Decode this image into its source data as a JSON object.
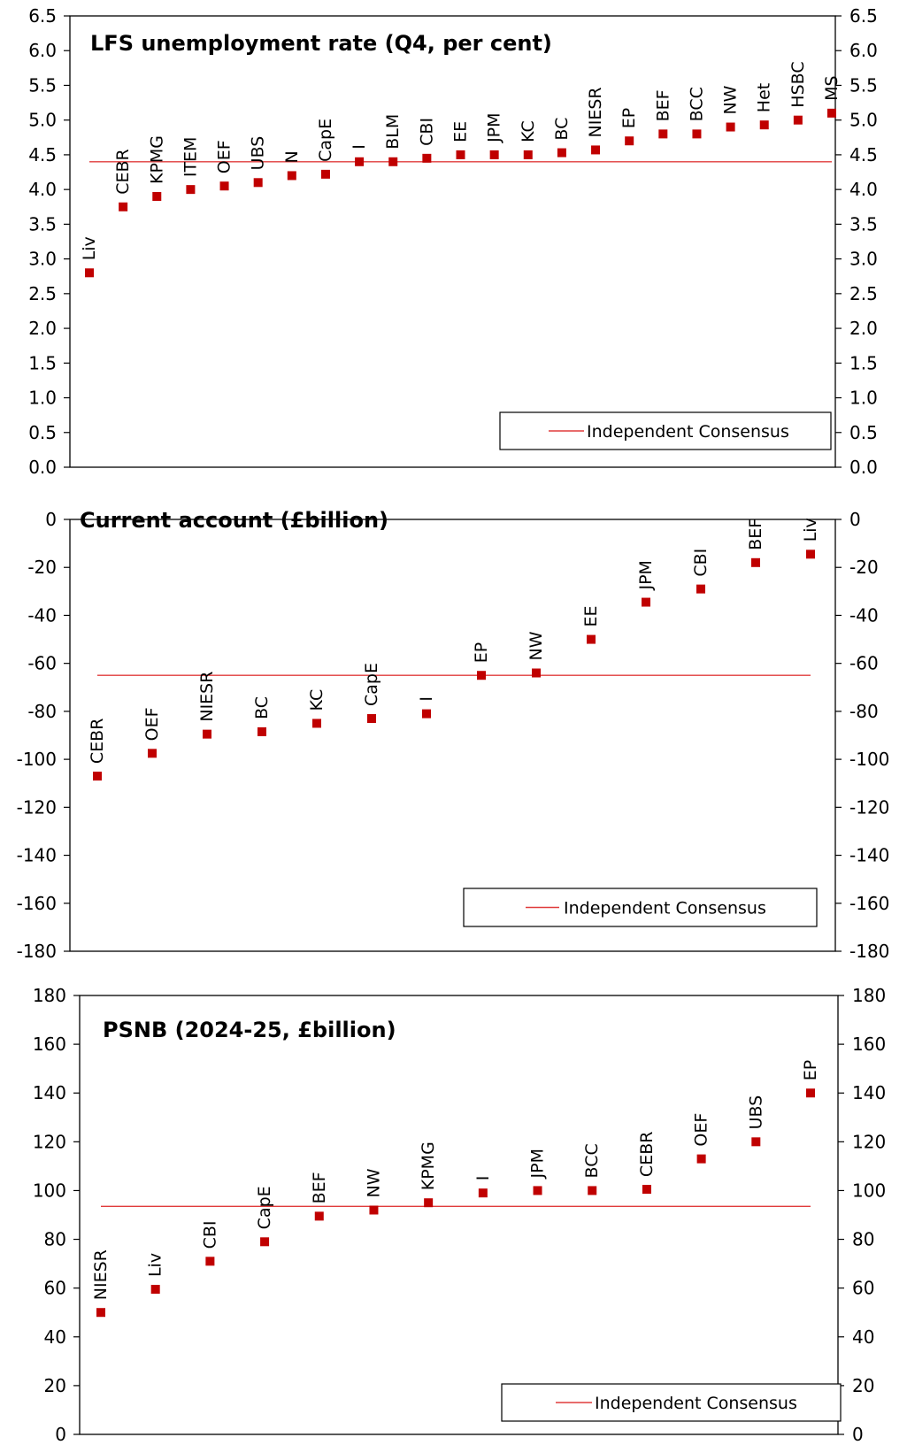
{
  "colors": {
    "marker": "#c00000",
    "consensus": "#e03c3c",
    "axis": "#000000"
  },
  "charts": [
    {
      "type": "scatter",
      "title": "LFS unemployment rate (Q4, per cent)",
      "legend": "Independent Consensus",
      "legend_placement": "bottom-right",
      "ylim": [
        0,
        6.5
      ],
      "yticks": [
        "0.0",
        "0.5",
        "1.0",
        "1.5",
        "2.0",
        "2.5",
        "3.0",
        "3.5",
        "4.0",
        "4.5",
        "5.0",
        "5.5",
        "6.0",
        "6.5"
      ],
      "consensus": 4.4,
      "points": [
        {
          "label": "Liv",
          "value": 2.8
        },
        {
          "label": "CEBR",
          "value": 3.75
        },
        {
          "label": "KPMG",
          "value": 3.9
        },
        {
          "label": "ITEM",
          "value": 4.0
        },
        {
          "label": "OEF",
          "value": 4.05
        },
        {
          "label": "UBS",
          "value": 4.1
        },
        {
          "label": "N",
          "value": 4.2
        },
        {
          "label": "CapE",
          "value": 4.22
        },
        {
          "label": "I",
          "value": 4.4
        },
        {
          "label": "BLM",
          "value": 4.4
        },
        {
          "label": "CBI",
          "value": 4.45
        },
        {
          "label": "EE",
          "value": 4.5
        },
        {
          "label": "JPM",
          "value": 4.5
        },
        {
          "label": "KC",
          "value": 4.5
        },
        {
          "label": "BC",
          "value": 4.53
        },
        {
          "label": "NIESR",
          "value": 4.57
        },
        {
          "label": "EP",
          "value": 4.7
        },
        {
          "label": "BEF",
          "value": 4.8
        },
        {
          "label": "BCC",
          "value": 4.8
        },
        {
          "label": "NW",
          "value": 4.9
        },
        {
          "label": "Het",
          "value": 4.93
        },
        {
          "label": "HSBC",
          "value": 5.0
        },
        {
          "label": "MS",
          "value": 5.1
        }
      ]
    },
    {
      "type": "scatter",
      "title": "Current account (£billion)",
      "legend": "Independent Consensus",
      "legend_placement": "bottom-right",
      "ylim": [
        -180,
        0
      ],
      "yticks": [
        "-180",
        "-160",
        "-140",
        "-120",
        "-100",
        "-80",
        "-60",
        "-40",
        "-20",
        "0"
      ],
      "consensus": -65,
      "points": [
        {
          "label": "CEBR",
          "value": -107
        },
        {
          "label": "OEF",
          "value": -97.5
        },
        {
          "label": "NIESR",
          "value": -89.5
        },
        {
          "label": "BC",
          "value": -88.5
        },
        {
          "label": "KC",
          "value": -85
        },
        {
          "label": "CapE",
          "value": -83
        },
        {
          "label": "I",
          "value": -81
        },
        {
          "label": "EP",
          "value": -65
        },
        {
          "label": "NW",
          "value": -64
        },
        {
          "label": "EE",
          "value": -50
        },
        {
          "label": "JPM",
          "value": -34.5
        },
        {
          "label": "CBI",
          "value": -29
        },
        {
          "label": "BEF",
          "value": -18
        },
        {
          "label": "Liv",
          "value": -14.5
        }
      ]
    },
    {
      "type": "scatter",
      "title": "PSNB (2024-25, £billion)",
      "legend": "Independent Consensus",
      "legend_placement": "bottom-right",
      "ylim": [
        0,
        180
      ],
      "yticks": [
        "0",
        "20",
        "40",
        "60",
        "80",
        "100",
        "120",
        "140",
        "160",
        "180"
      ],
      "consensus": 93.5,
      "points": [
        {
          "label": "NIESR",
          "value": 50
        },
        {
          "label": "Liv",
          "value": 59.5
        },
        {
          "label": "CBI",
          "value": 71
        },
        {
          "label": "CapE",
          "value": 79
        },
        {
          "label": "BEF",
          "value": 89.5
        },
        {
          "label": "NW",
          "value": 92
        },
        {
          "label": "KPMG",
          "value": 95
        },
        {
          "label": "I",
          "value": 99
        },
        {
          "label": "JPM",
          "value": 100
        },
        {
          "label": "BCC",
          "value": 100
        },
        {
          "label": "CEBR",
          "value": 100.5
        },
        {
          "label": "OEF",
          "value": 113
        },
        {
          "label": "UBS",
          "value": 120
        },
        {
          "label": "EP",
          "value": 140
        }
      ]
    }
  ]
}
